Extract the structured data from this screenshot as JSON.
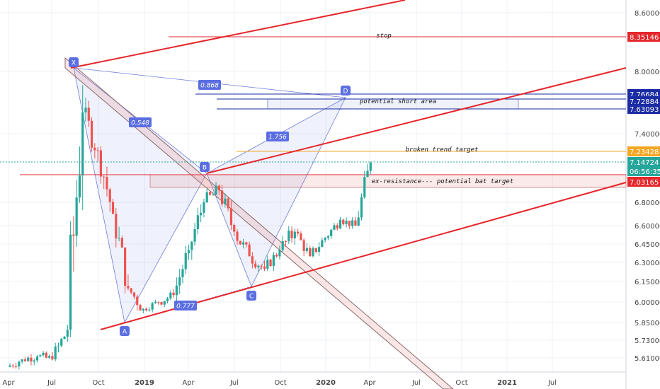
{
  "chart_data": {
    "type": "candlestick",
    "title": "",
    "xlabel": "",
    "ylabel": "",
    "y_scale": "log",
    "ylim": [
      5.52,
      8.85
    ],
    "grid": true,
    "y_ticks": [
      "8.60000",
      "8.00000",
      "7.40000",
      "6.80000",
      "6.60000",
      "6.45000",
      "6.30000",
      "6.15000",
      "6.00000",
      "5.85000",
      "5.73000",
      "5.61000"
    ],
    "x_ticks": [
      "Apr",
      "Jul",
      "Oct",
      "2019",
      "Apr",
      "Jul",
      "Oct",
      "2020",
      "Apr",
      "Jul",
      "Oct",
      "2021",
      "Jul"
    ],
    "price_tags": [
      {
        "value": "8.35146",
        "color": "#e5262b"
      },
      {
        "value": "7.76684",
        "color": "#1a2ba3"
      },
      {
        "value": "7.72884",
        "color": "#1a2ba3"
      },
      {
        "value": "7.63093",
        "color": "#1a2ba3"
      },
      {
        "value": "7.23428",
        "color": "#f5a623"
      },
      {
        "value": "7.14724",
        "color": "#26a69a"
      },
      {
        "value": "06:56:35",
        "color": "#26a69a"
      },
      {
        "value": "7.03165",
        "color": "#e5262b"
      }
    ],
    "pattern_points": [
      {
        "label": "X",
        "date": "2018-08",
        "price": 8.02
      },
      {
        "label": "A",
        "date": "2018-12",
        "price": 5.86
      },
      {
        "label": "B",
        "date": "2019-05",
        "price": 7.08
      },
      {
        "label": "C",
        "date": "2019-08",
        "price": 6.15
      },
      {
        "label": "D",
        "date": "2020-01",
        "price": 7.63
      }
    ],
    "ratios": [
      "0.868",
      "0.548",
      "1.756",
      "0.777"
    ],
    "annotations": [
      "stop",
      "potential short area",
      "broken trend target",
      "ex-resistance--- potential bat target"
    ],
    "bars_monthly": [
      {
        "month": "2018-04",
        "open": 5.55,
        "high": 5.7,
        "low": 5.52,
        "close": 5.6
      },
      {
        "month": "2018-05",
        "open": 5.6,
        "high": 5.72,
        "low": 5.55,
        "close": 5.62
      },
      {
        "month": "2018-06",
        "open": 5.62,
        "high": 5.75,
        "low": 5.56,
        "close": 5.6
      },
      {
        "month": "2018-07",
        "open": 5.6,
        "high": 5.9,
        "low": 5.55,
        "close": 5.8
      },
      {
        "month": "2018-08",
        "open": 5.8,
        "high": 8.05,
        "low": 5.75,
        "close": 7.6
      },
      {
        "month": "2018-09",
        "open": 7.6,
        "high": 7.8,
        "low": 7.1,
        "close": 7.25
      },
      {
        "month": "2018-10",
        "open": 7.25,
        "high": 7.3,
        "low": 6.6,
        "close": 6.7
      },
      {
        "month": "2018-11",
        "open": 6.7,
        "high": 6.75,
        "low": 6.05,
        "close": 6.1
      },
      {
        "month": "2018-12",
        "open": 6.1,
        "high": 6.2,
        "low": 5.86,
        "close": 5.95
      },
      {
        "month": "2019-01",
        "open": 5.95,
        "high": 6.05,
        "low": 5.9,
        "close": 6.0
      },
      {
        "month": "2019-02",
        "open": 6.0,
        "high": 6.12,
        "low": 5.92,
        "close": 6.05
      },
      {
        "month": "2019-03",
        "open": 6.05,
        "high": 6.45,
        "low": 6.0,
        "close": 6.4
      },
      {
        "month": "2019-04",
        "open": 6.4,
        "high": 6.85,
        "low": 6.3,
        "close": 6.8
      },
      {
        "month": "2019-05",
        "open": 6.8,
        "high": 7.08,
        "low": 6.7,
        "close": 6.9
      },
      {
        "month": "2019-06",
        "open": 6.9,
        "high": 6.95,
        "low": 6.45,
        "close": 6.55
      },
      {
        "month": "2019-07",
        "open": 6.55,
        "high": 6.65,
        "low": 6.25,
        "close": 6.35
      },
      {
        "month": "2019-08",
        "open": 6.35,
        "high": 6.45,
        "low": 6.15,
        "close": 6.25
      },
      {
        "month": "2019-09",
        "open": 6.25,
        "high": 6.45,
        "low": 6.18,
        "close": 6.4
      },
      {
        "month": "2019-10",
        "open": 6.4,
        "high": 6.62,
        "low": 6.2,
        "close": 6.55
      },
      {
        "month": "2019-11",
        "open": 6.55,
        "high": 6.6,
        "low": 6.3,
        "close": 6.35
      },
      {
        "month": "2019-12",
        "open": 6.35,
        "high": 6.55,
        "low": 6.28,
        "close": 6.5
      },
      {
        "month": "2020-01",
        "open": 6.5,
        "high": 6.7,
        "low": 6.45,
        "close": 6.65
      },
      {
        "month": "2020-02",
        "open": 6.65,
        "high": 6.75,
        "low": 6.55,
        "close": 6.6
      },
      {
        "month": "2020-03",
        "open": 6.6,
        "high": 7.16,
        "low": 6.58,
        "close": 7.14
      }
    ]
  }
}
